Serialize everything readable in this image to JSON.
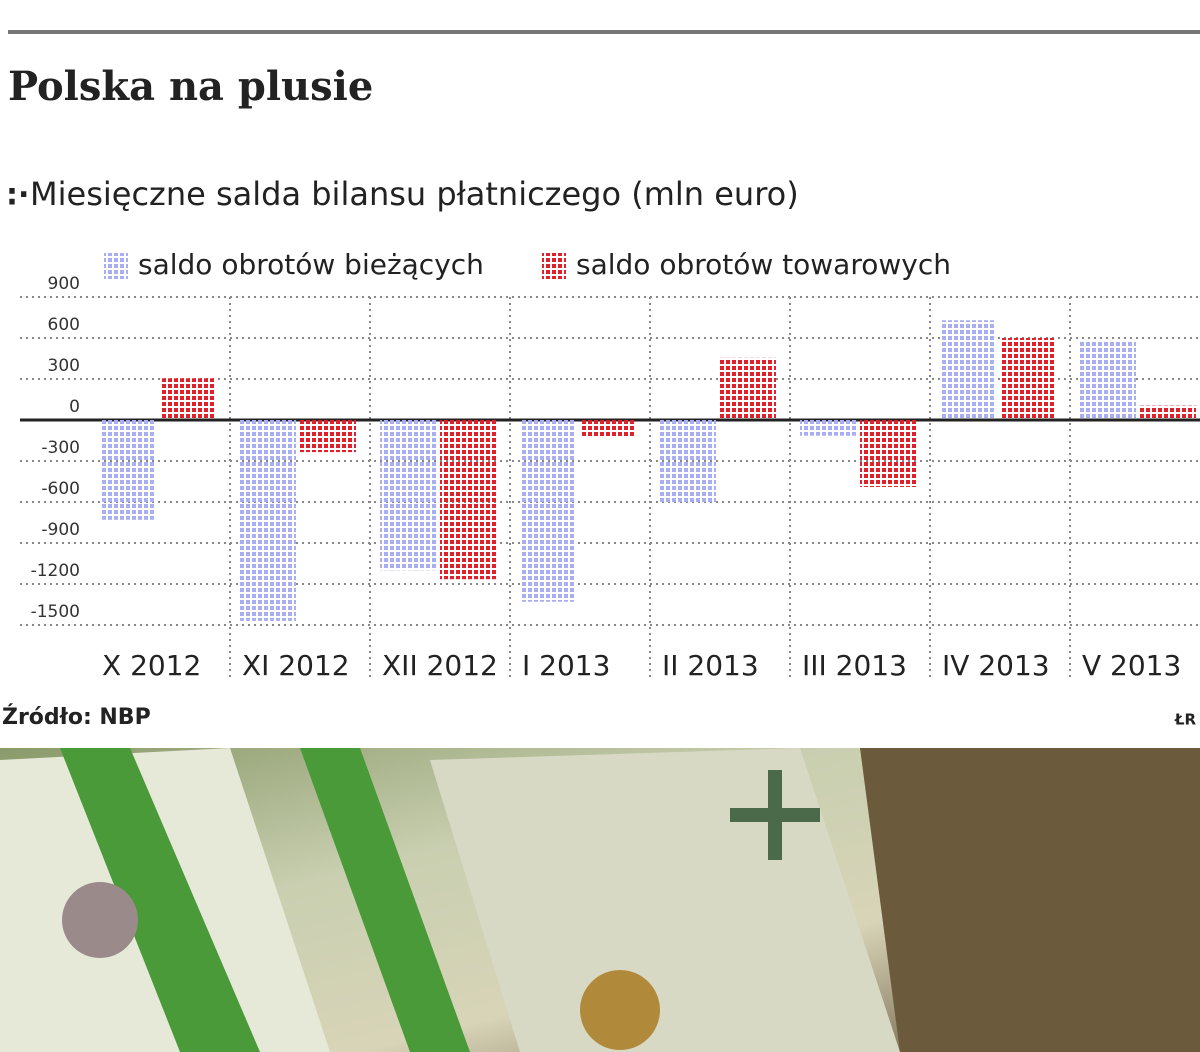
{
  "chart_data": {
    "type": "bar",
    "title": "Polska na plusie",
    "subtitle": "Miesięczne salda bilansu płatniczego (mln euro)",
    "source": "Źródło: NBP",
    "credit": "ŁR",
    "categories": [
      "X 2012",
      "XI 2012",
      "XII 2012",
      "I 2013",
      "II 2013",
      "III 2013",
      "IV 2013",
      "V 2013"
    ],
    "series": [
      {
        "name": "saldo obrotów bieżących",
        "color": "#a9aef2",
        "values": [
          -730,
          -1470,
          -1100,
          -1330,
          -600,
          -115,
          730,
          585
        ]
      },
      {
        "name": "saldo obrotów towarowych",
        "color": "#e0202a",
        "values": [
          305,
          -235,
          -1165,
          -125,
          455,
          -490,
          600,
          105
        ]
      }
    ],
    "ylim": [
      -1500,
      900
    ],
    "yticks": [
      900,
      600,
      300,
      0,
      -300,
      -600,
      -900,
      -1200,
      -1500
    ],
    "grid": true
  }
}
